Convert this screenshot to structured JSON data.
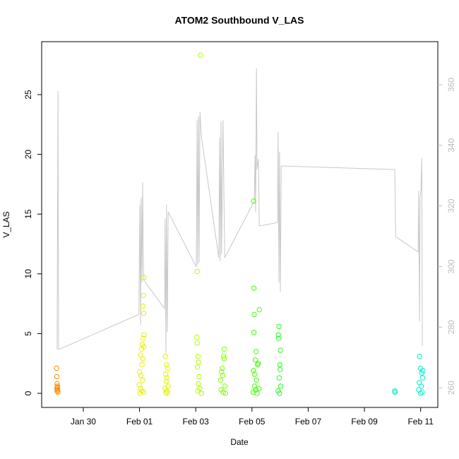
{
  "chart_data": {
    "type": "scatter",
    "title": "ATOM2 Southbound V_LAS",
    "x_label": "Date",
    "y_label": "V_LAS",
    "xlim": [
      -1.48,
      12.61
    ],
    "xticks": [
      {
        "value": 0,
        "label": "Jan 30"
      },
      {
        "value": 2,
        "label": "Feb 01"
      },
      {
        "value": 4,
        "label": "Feb 03"
      },
      {
        "value": 6,
        "label": "Feb 05"
      },
      {
        "value": 8,
        "label": "Feb 07"
      },
      {
        "value": 10,
        "label": "Feb 09"
      },
      {
        "value": 12,
        "label": "Feb 11"
      }
    ],
    "ylim": [
      -1.18,
      29.43
    ],
    "yticks": [
      0,
      5,
      10,
      15,
      20,
      25
    ],
    "y2lim": [
      253.5,
      374.2
    ],
    "y2ticks": [
      260,
      280,
      300,
      320,
      340,
      360
    ],
    "series": [
      {
        "color": "#ff8c00",
        "x": [
          -0.95,
          -0.94,
          -0.93,
          -0.92,
          -0.91,
          -0.93,
          -0.9,
          -0.94,
          -0.92
        ],
        "values": [
          2.1,
          1.4,
          0.8,
          0.5,
          0.3,
          0.2,
          0.1,
          0.4,
          0.6
        ]
      },
      {
        "color": "#e8f000",
        "x": [
          2.16,
          2.14,
          2.12,
          2.15,
          2.16,
          2.13,
          2.1,
          2.15,
          2.07,
          2.04,
          2.12,
          2.09,
          2.0,
          2.05,
          2.11,
          1.99,
          2.03,
          2.08,
          2.14,
          2.02
        ],
        "values": [
          9.7,
          8.2,
          7.3,
          6.7,
          4.9,
          4.6,
          4.1,
          3.9,
          3.7,
          3.2,
          2.9,
          2.4,
          1.8,
          1.5,
          1.1,
          0.7,
          0.4,
          0.2,
          0.1,
          0
        ]
      },
      {
        "color": "#e0f400",
        "x": [
          2.92,
          2.97,
          3.0,
          2.93,
          2.98,
          2.95,
          3.02,
          2.9,
          2.96,
          3.0,
          2.94
        ],
        "values": [
          3.1,
          2.4,
          2.1,
          1.6,
          1.3,
          1.0,
          0.6,
          0.4,
          0.2,
          0.1,
          0
        ]
      },
      {
        "color": "#b0ff00",
        "x": [
          4.17,
          4.05,
          4.04,
          4.05,
          4.08,
          4.1,
          4.06,
          4.12,
          4.09,
          4.14,
          4.07,
          4.2
        ],
        "values": [
          28.3,
          10.2,
          4.7,
          4.2,
          3.1,
          2.6,
          2.2,
          1.4,
          0.8,
          0.4,
          0.2,
          0
        ]
      },
      {
        "color": "#80ff00",
        "x": [
          5.02,
          4.99,
          5.01,
          4.94,
          4.92,
          4.96,
          4.88,
          5.04,
          4.9,
          4.98,
          5.06
        ],
        "values": [
          3.7,
          3.1,
          2.9,
          2.1,
          1.8,
          1.5,
          1.1,
          0.6,
          0.3,
          0.1,
          0
        ]
      },
      {
        "color": "#40ff00",
        "x": [
          6.06,
          6.07,
          6.08,
          6.07,
          6.15,
          6.12,
          6.2,
          6.05,
          6.1,
          6.16,
          6.09,
          6.13,
          6.04,
          6.18,
          6.26,
          6.22,
          6.25
        ],
        "values": [
          16.1,
          8.8,
          6.6,
          5.1,
          3.5,
          2.8,
          2.4,
          1.9,
          1.6,
          1.1,
          0.6,
          0.3,
          0.1,
          0,
          7.0,
          2.5,
          0.4
        ]
      },
      {
        "color": "#20ff20",
        "x": [
          6.96,
          6.94,
          6.95,
          7.01,
          6.99,
          7.0,
          6.97,
          7.02,
          6.93,
          6.98
        ],
        "values": [
          5.6,
          4.9,
          4.6,
          3.6,
          2.4,
          2.0,
          1.3,
          0.6,
          0.2,
          0
        ]
      },
      {
        "color": "#00f0c8",
        "x": [
          11.08,
          11.09,
          11.96,
          11.99,
          12.08,
          12.04,
          12.07,
          11.95,
          12.02,
          11.93,
          12.05,
          12.0
        ],
        "values": [
          0.2,
          0.1,
          3.1,
          2.1,
          1.9,
          1.7,
          1.3,
          0.9,
          0.6,
          0.3,
          0.1,
          0
        ]
      }
    ],
    "line": {
      "color": "#c8c8c8",
      "axis": "y2",
      "x": [
        -0.93,
        -0.9,
        -0.88,
        1.98,
        2.01,
        2.04,
        2.06,
        2.09,
        2.11,
        2.14,
        2.16,
        2.89,
        2.91,
        2.94,
        2.96,
        2.99,
        3.02,
        4.02,
        4.05,
        4.07,
        4.1,
        4.12,
        4.15,
        4.2,
        4.82,
        4.85,
        4.87,
        4.9,
        4.92,
        4.97,
        5.03,
        6.08,
        6.11,
        6.13,
        6.16,
        6.18,
        6.23,
        6.26,
        6.91,
        6.93,
        6.96,
        6.98,
        7.01,
        7.04,
        11.08,
        11.11,
        11.91,
        11.93,
        11.96,
        11.98,
        12.01,
        12.04,
        12.06
      ],
      "values": [
        272.6,
        357.9,
        272.6,
        284.2,
        320.4,
        280.7,
        322.7,
        294.7,
        327.8,
        299.4,
        295.4,
        286.1,
        315.7,
        271.4,
        320.4,
        278.4,
        318.0,
        299.9,
        348.3,
        300.6,
        349.5,
        301.3,
        351.1,
        343.0,
        302.9,
        342.5,
        301.7,
        347.9,
        304.1,
        348.3,
        302.9,
        321.5,
        336.7,
        318.0,
        365.4,
        332.0,
        335.5,
        313.4,
        314.5,
        344.4,
        294.7,
        337.9,
        291.7,
        333.2,
        332.0,
        309.9,
        304.8,
        325.0,
        281.9,
        322.7,
        325.0,
        335.8,
        273.8
      ]
    }
  }
}
